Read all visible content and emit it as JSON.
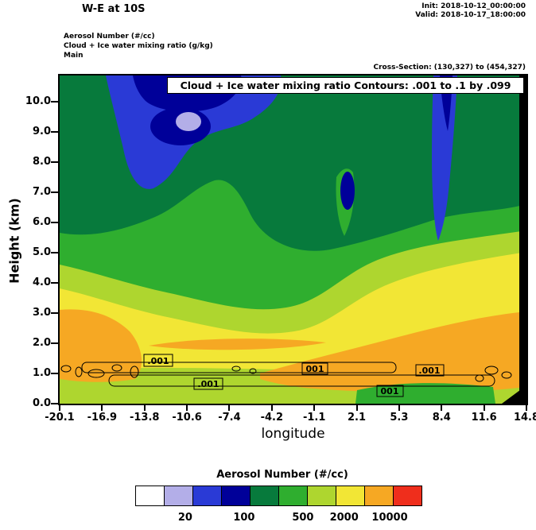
{
  "header": {
    "title": "W-E at 10S",
    "init": "Init: 2018-10-12_00:00:00",
    "valid": "Valid: 2018-10-17_18:00:00",
    "field_lines": {
      "line1": "Aerosol Number  (#/cc)",
      "line2": "Cloud + Ice water mixing ratio  (g/kg)",
      "line3": "Main"
    },
    "cross_section": "Cross-Section: (130,327) to (454,327)"
  },
  "plot": {
    "banner": "Cloud + Ice water mixing ratio Contours: .001 to .1 by .099",
    "y_axis_label": "Height (km)",
    "x_axis_label": "longitude",
    "y_ticks": [
      "10.0",
      "9.0",
      "8.0",
      "7.0",
      "6.0",
      "5.0",
      "4.0",
      "3.0",
      "2.0",
      "1.0",
      "0.0"
    ],
    "x_ticks": [
      "-20.1",
      "-16.9",
      "-13.8",
      "-10.6",
      "-7.4",
      "-4.2",
      "-1.1",
      "2.1",
      "5.3",
      "8.4",
      "11.6",
      "14.8"
    ],
    "contour_labels": [
      ".001",
      "001",
      ".001",
      ".001",
      "001"
    ]
  },
  "colorbar": {
    "title": "Aerosol Number  (#/cc)",
    "colors": [
      "#ffffff",
      "#b3aee8",
      "#2a3ad6",
      "#000099",
      "#077a3c",
      "#2fae2f",
      "#aed62f",
      "#f2e635",
      "#f6a823",
      "#ef2e1c"
    ],
    "tick_labels": [
      "20",
      "100",
      "500",
      "2000",
      "10000"
    ]
  },
  "chart_data": {
    "type": "heatmap",
    "title": "W-E at 10S: Aerosol Number (#/cc) vertical cross-section with Cloud + Ice water mixing ratio contours (.001 to .1 by .099 g/kg)",
    "xlabel": "longitude",
    "ylabel": "Height (km)",
    "xlim": [
      -20.1,
      14.8
    ],
    "ylim": [
      0.0,
      10.9
    ],
    "x": [
      -20.1,
      -16.9,
      -13.8,
      -10.6,
      -7.4,
      -4.2,
      -1.1,
      2.1,
      5.3,
      8.4,
      11.6,
      14.8
    ],
    "y": [
      10,
      9,
      8,
      7,
      6,
      5,
      4,
      3,
      2,
      1,
      0
    ],
    "palette_classes": [
      "white",
      "lavender",
      "blue",
      "navy",
      "dark-green",
      "green",
      "yellow-green",
      "yellow",
      "orange",
      "red"
    ],
    "palette_hex": [
      "#ffffff",
      "#b3aee8",
      "#2a3ad6",
      "#000099",
      "#077a3c",
      "#2fae2f",
      "#aed62f",
      "#f2e635",
      "#f6a823",
      "#ef2e1c"
    ],
    "colorbar_boundary_labels": [
      20,
      100,
      500,
      2000,
      10000
    ],
    "grid_palette_index": [
      [
        4,
        2,
        3,
        3,
        3,
        2,
        4,
        4,
        4,
        2,
        4,
        4
      ],
      [
        4,
        4,
        2,
        1,
        2,
        4,
        4,
        4,
        4,
        2,
        4,
        4
      ],
      [
        4,
        4,
        2,
        4,
        4,
        4,
        4,
        4,
        4,
        2,
        4,
        4
      ],
      [
        4,
        4,
        2,
        4,
        4,
        4,
        4,
        4,
        4,
        2,
        4,
        4
      ],
      [
        4,
        4,
        4,
        4,
        5,
        4,
        4,
        4,
        4,
        2,
        4,
        4
      ],
      [
        6,
        5,
        4,
        5,
        5,
        4,
        5,
        5,
        6,
        6,
        7,
        7
      ],
      [
        7,
        6,
        6,
        6,
        6,
        6,
        6,
        7,
        7,
        7,
        7,
        7
      ],
      [
        8,
        8,
        7,
        7,
        7,
        7,
        7,
        7,
        8,
        8,
        8,
        8
      ],
      [
        8,
        8,
        7,
        8,
        8,
        8,
        8,
        8,
        8,
        8,
        8,
        8
      ],
      [
        6,
        6,
        7,
        6,
        6,
        6,
        6,
        7,
        6,
        6,
        6,
        6
      ],
      [
        6,
        6,
        6,
        6,
        6,
        6,
        6,
        5,
        5,
        5,
        5,
        6
      ]
    ],
    "grid_note": "Rows correspond to heights y (10 km down to 0 km); values are indices into palette_classes, estimated from the filled-contour colors.",
    "contour_variable": "Cloud + Ice water mixing ratio (g/kg)",
    "contour_levels": ".001 to .1 by .099",
    "contour_label_values": [
      0.001
    ],
    "grid_on": false,
    "legend_position": "bottom colorbar"
  }
}
